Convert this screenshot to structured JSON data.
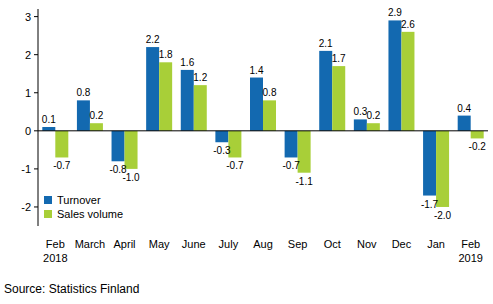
{
  "chart_data": {
    "type": "bar",
    "categories": [
      "Feb 2018",
      "March",
      "April",
      "May",
      "June",
      "July",
      "Aug",
      "Sep",
      "Oct",
      "Nov",
      "Dec",
      "Jan",
      "Feb 2019"
    ],
    "series": [
      {
        "name": "Turnover",
        "color": "#1369b0",
        "values": [
          0.1,
          0.8,
          -0.8,
          2.2,
          1.6,
          -0.3,
          1.4,
          -0.7,
          2.1,
          0.3,
          2.9,
          -1.7,
          0.4
        ]
      },
      {
        "name": "Sales volume",
        "color": "#a8cf38",
        "values": [
          -0.7,
          0.2,
          -1.0,
          1.8,
          1.2,
          -0.7,
          0.8,
          -1.1,
          1.7,
          0.2,
          2.6,
          -2.0,
          -0.2
        ],
        "value_labels": [
          "-0.7",
          "0.2",
          "-1.0",
          "1.8",
          "1.2",
          "-0.7",
          "0.8",
          "-1.1",
          "1.7",
          "0.2",
          "2.6",
          "-2.0",
          "-0.2"
        ]
      }
    ],
    "ylim": [
      -2.5,
      3.2
    ],
    "yticks": [
      -2,
      -1,
      0,
      1,
      2,
      3
    ],
    "grid": false,
    "legend": "bottom left",
    "data_labels": true,
    "source": "Source: Statistics Finland"
  }
}
